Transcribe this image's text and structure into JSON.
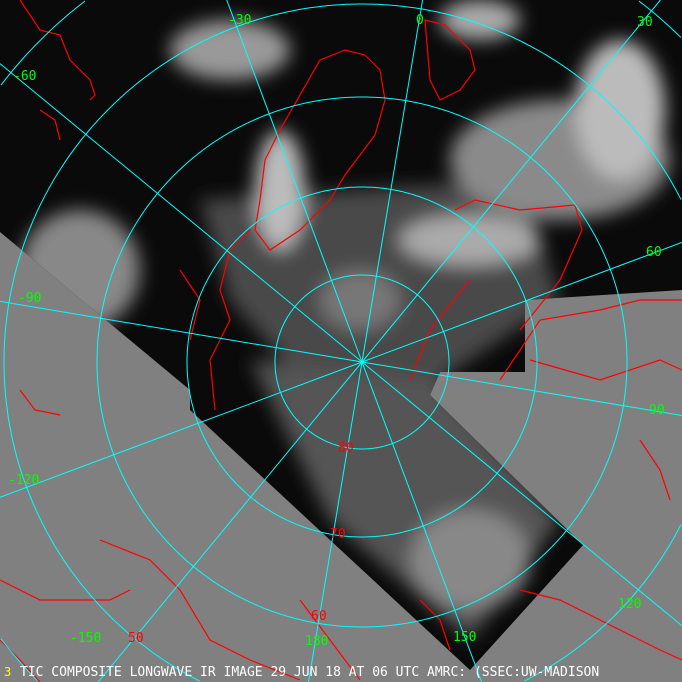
{
  "caption": "TIC COMPOSITE LONGWAVE IR IMAGE 29 JUN 18 AT 06 UTC AMRC: (SSEC:UW-MADISON",
  "caption_marker": "3",
  "projection": "polar stereographic, north pole",
  "colors": {
    "background": "#808080",
    "graticule": "#00ffff",
    "coastline": "#ff0000",
    "longitude_labels": "#00ff00",
    "latitude_labels": "#ff0000",
    "caption": "#ffffff"
  },
  "latitude_labels": [
    "80",
    "70",
    "60",
    "50"
  ],
  "longitude_labels": [
    "-30",
    "0",
    "30",
    "-60",
    "60",
    "-90",
    "90",
    "-120",
    "120",
    "-150",
    "150",
    "180"
  ]
}
